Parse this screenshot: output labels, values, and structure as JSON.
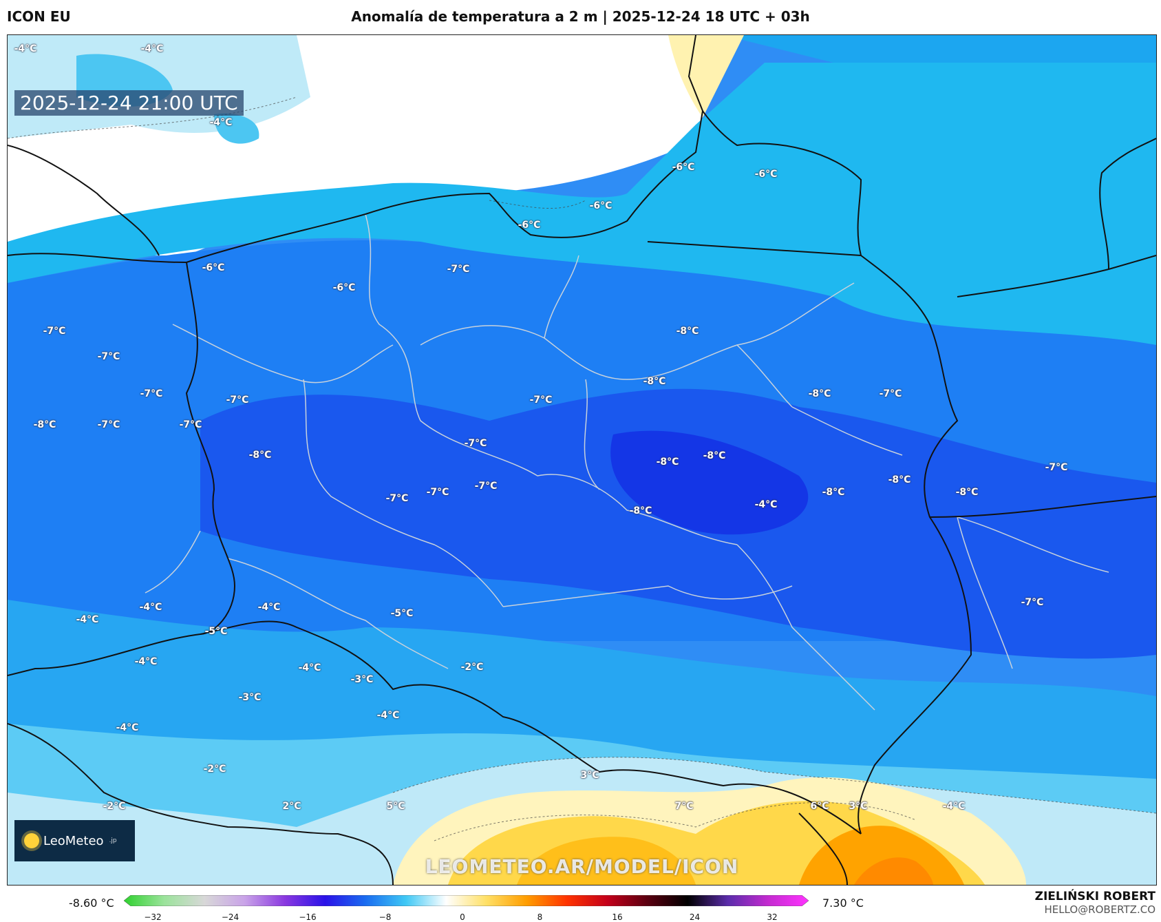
{
  "header": {
    "model": "ICON EU",
    "title": "Anomalía de temperatura a 2 m | 2025-12-24 18 UTC + 03h"
  },
  "map": {
    "timestamp": "2025-12-24 21:00 UTC",
    "watermark": "LEOMETEO.AR/MODEL/ICON",
    "logo_text": "LeoMeteo",
    "logo_suffix": ".jp",
    "labels": [
      {
        "id": "l1",
        "text": "-6°C"
      },
      {
        "id": "l2",
        "text": "-6°C"
      },
      {
        "id": "l3",
        "text": "-6°C"
      },
      {
        "id": "l4",
        "text": "-6°C"
      },
      {
        "id": "l5",
        "text": "-6°C"
      },
      {
        "id": "l6",
        "text": "-7°C"
      },
      {
        "id": "l7",
        "text": "-6°C"
      },
      {
        "id": "l8",
        "text": "-7°C"
      },
      {
        "id": "l9",
        "text": "-7°C"
      },
      {
        "id": "l10",
        "text": "-7°C"
      },
      {
        "id": "l11",
        "text": "-8°C"
      },
      {
        "id": "l12",
        "text": "-8°C"
      },
      {
        "id": "l13",
        "text": "-7°C"
      },
      {
        "id": "l14",
        "text": "-8°C"
      },
      {
        "id": "l15",
        "text": "-7°C"
      },
      {
        "id": "l16",
        "text": "-7°C"
      },
      {
        "id": "l17",
        "text": "-7°C"
      },
      {
        "id": "l18",
        "text": "-8°C"
      },
      {
        "id": "l19",
        "text": "-7°C"
      },
      {
        "id": "l20",
        "text": "-8°C"
      },
      {
        "id": "l21",
        "text": "-8°C"
      },
      {
        "id": "l22",
        "text": "-7°C"
      },
      {
        "id": "l23",
        "text": "-7°C"
      },
      {
        "id": "l24",
        "text": "-7°C"
      },
      {
        "id": "l25",
        "text": "-8°C"
      },
      {
        "id": "l26",
        "text": "-8°C"
      },
      {
        "id": "l27",
        "text": "-8°C"
      },
      {
        "id": "l28",
        "text": "-8°C"
      },
      {
        "id": "l29",
        "text": "-8°C"
      },
      {
        "id": "l30",
        "text": "-7°C"
      },
      {
        "id": "l31",
        "text": "-7°C"
      },
      {
        "id": "l32",
        "text": "-4°C"
      },
      {
        "id": "l33",
        "text": "-4°C"
      },
      {
        "id": "l34",
        "text": "-4°C"
      },
      {
        "id": "l35",
        "text": "-4°C"
      },
      {
        "id": "l36",
        "text": "-5°C"
      },
      {
        "id": "l37",
        "text": "-5°C"
      },
      {
        "id": "l38",
        "text": "-4°C"
      },
      {
        "id": "l39",
        "text": "-4°C"
      },
      {
        "id": "l40",
        "text": "-3°C"
      },
      {
        "id": "l41",
        "text": "-2°C"
      },
      {
        "id": "l42",
        "text": "-3°C"
      },
      {
        "id": "l43",
        "text": "-4°C"
      },
      {
        "id": "l44",
        "text": "-4°C"
      },
      {
        "id": "l45",
        "text": "-2°C"
      },
      {
        "id": "l46",
        "text": "-2°C"
      },
      {
        "id": "l47",
        "text": "2°C"
      },
      {
        "id": "l48",
        "text": "5°C"
      },
      {
        "id": "l49",
        "text": "3°C"
      },
      {
        "id": "l50",
        "text": "7°C"
      },
      {
        "id": "l51",
        "text": "6°C"
      },
      {
        "id": "l52",
        "text": "3°C"
      },
      {
        "id": "l53",
        "text": "-4°C"
      },
      {
        "id": "l54",
        "text": "-4°C"
      },
      {
        "id": "l55",
        "text": "-4°C"
      }
    ]
  },
  "colorbar": {
    "min_label": "-8.60 °C",
    "max_label": "7.30 °C",
    "ticks": [
      "−32",
      "−24",
      "−16",
      "−8",
      "0",
      "8",
      "16",
      "24",
      "32"
    ],
    "stops": [
      "#2fd12f",
      "#9be39b",
      "#d8d8d8",
      "#c9a3e8",
      "#8a38e0",
      "#2a12e8",
      "#1a6cf0",
      "#3fc8f5",
      "#ffffff",
      "#ffe066",
      "#ff9d00",
      "#ff3300",
      "#c4001a",
      "#5a0010",
      "#000000",
      "#5b2cab",
      "#c42bd0",
      "#ff33ff"
    ]
  },
  "author": {
    "name": "ZIELIŃSKI ROBERT",
    "email": "HELLO@ROBERTZ.CO"
  }
}
